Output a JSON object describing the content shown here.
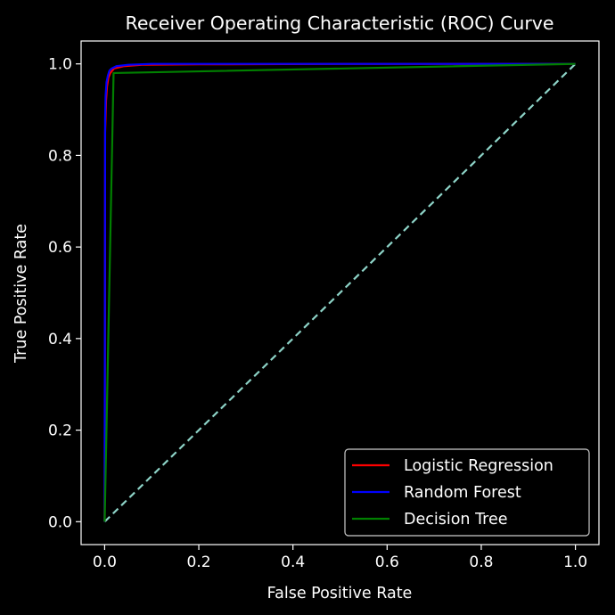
{
  "chart_data": {
    "type": "line",
    "title": "Receiver Operating Characteristic (ROC) Curve",
    "xlabel": "False Positive Rate",
    "ylabel": "True Positive Rate",
    "xlim": [
      -0.05,
      1.05
    ],
    "ylim": [
      -0.05,
      1.05
    ],
    "xticks": [
      "0.0",
      "0.2",
      "0.4",
      "0.6",
      "0.8",
      "1.0"
    ],
    "yticks": [
      "0.0",
      "0.2",
      "0.4",
      "0.6",
      "0.8",
      "1.0"
    ],
    "grid": false,
    "legend": "lower-right",
    "background": "#000000",
    "series": [
      {
        "name": "Logistic Regression",
        "color": "#ff0000",
        "x": [
          0.0,
          0.001,
          0.003,
          0.005,
          0.008,
          0.012,
          0.02,
          0.04,
          0.08,
          0.2,
          0.5,
          1.0
        ],
        "y": [
          0.0,
          0.85,
          0.92,
          0.95,
          0.97,
          0.98,
          0.99,
          0.995,
          0.998,
          0.999,
          1.0,
          1.0
        ]
      },
      {
        "name": "Random Forest",
        "color": "#0000ff",
        "x": [
          0.0,
          0.001,
          0.002,
          0.004,
          0.007,
          0.01,
          0.015,
          0.025,
          0.05,
          0.1,
          0.3,
          1.0
        ],
        "y": [
          0.0,
          0.88,
          0.93,
          0.96,
          0.975,
          0.985,
          0.99,
          0.995,
          0.998,
          1.0,
          1.0,
          1.0
        ]
      },
      {
        "name": "Decision Tree",
        "color": "#008000",
        "x": [
          0.0,
          0.019,
          1.0
        ],
        "y": [
          0.0,
          0.98,
          1.0
        ]
      },
      {
        "name": "",
        "color": "#8dd3c7",
        "dashed": true,
        "x": [
          0.0,
          1.0
        ],
        "y": [
          0.0,
          1.0
        ]
      }
    ]
  }
}
